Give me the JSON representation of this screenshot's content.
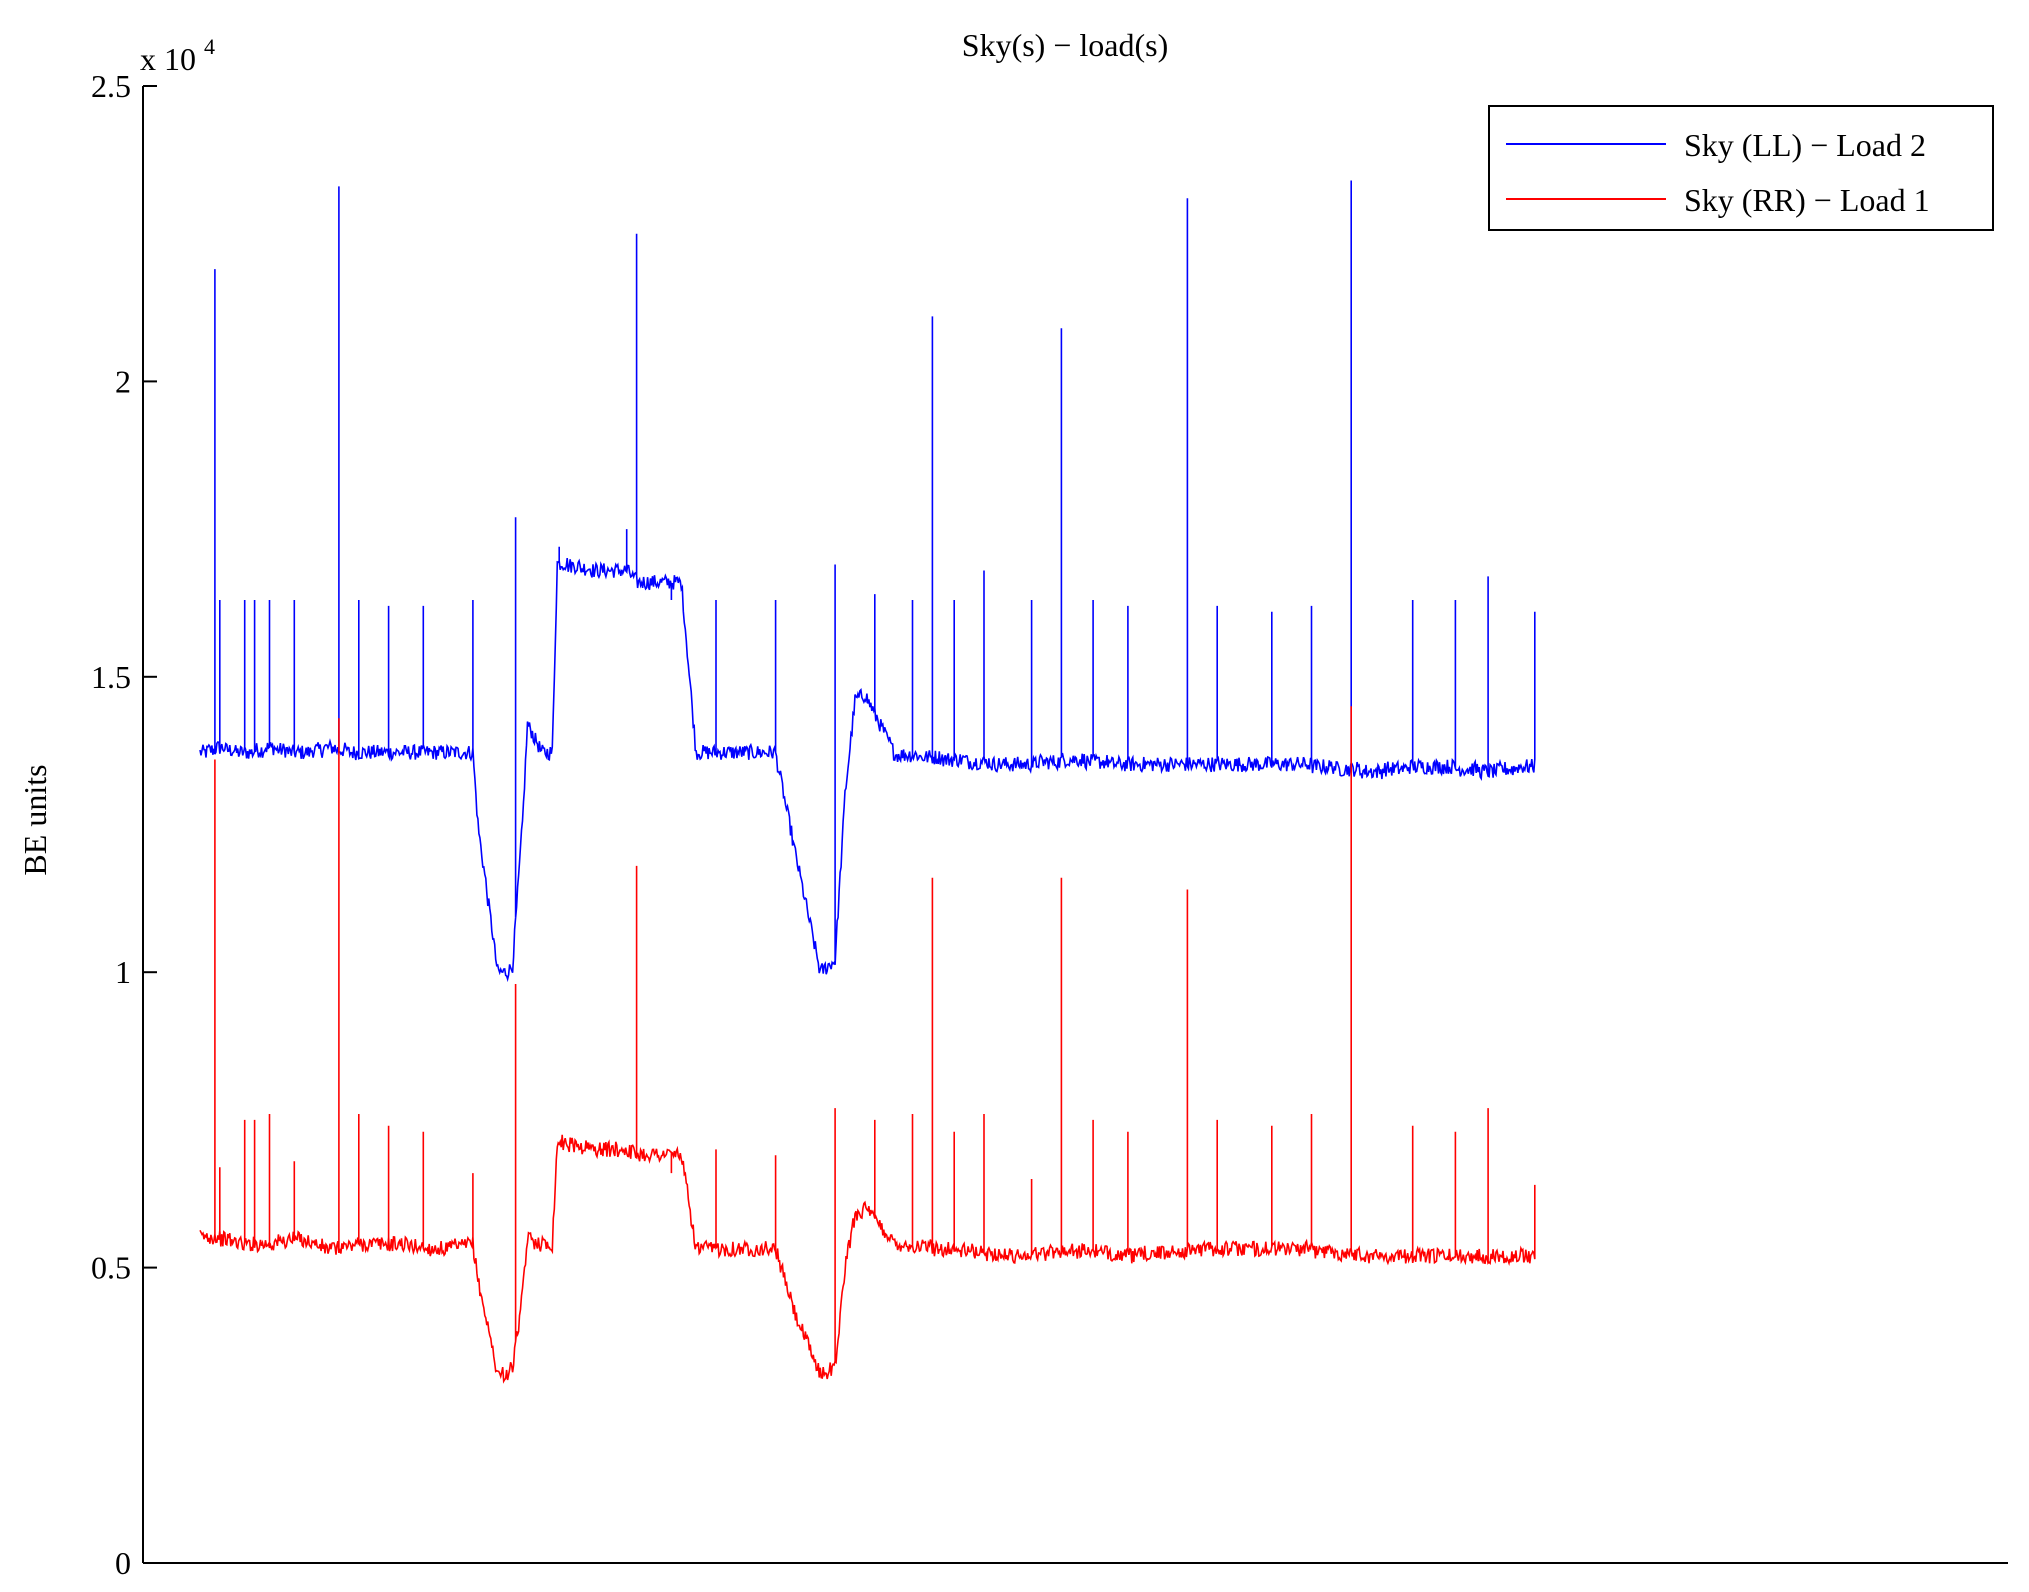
{
  "chart_data": {
    "type": "line",
    "title": "Sky(s) − load(s)",
    "xlabel": "",
    "ylabel": "BE units",
    "yscale_label": "x 10",
    "yscale_exponent": "4",
    "ylim": [
      0,
      25000
    ],
    "yticks": [
      0,
      5000,
      10000,
      15000,
      20000,
      25000
    ],
    "ytick_labels": [
      "0",
      "0.5",
      "1",
      "1.5",
      "2",
      "2.5"
    ],
    "xlim": [
      0,
      1575
    ],
    "grid": false,
    "legend_position": "top-right",
    "series": [
      {
        "name": "Sky (LL) − Load 2",
        "color": "#0000ff",
        "x": [
          0,
          20,
          45,
          70,
          100,
          130,
          160,
          200,
          240,
          275,
          280,
          300,
          310,
          315,
          325,
          330,
          345,
          355,
          360,
          370,
          400,
          430,
          440,
          485,
          500,
          510,
          525,
          540,
          580,
          600,
          625,
          640,
          650,
          660,
          670,
          700,
          760,
          820,
          880,
          940,
          1000,
          1060,
          1120,
          1180,
          1240,
          1300,
          1345
        ],
        "y": [
          13700,
          13800,
          13700,
          13800,
          13700,
          13800,
          13700,
          13700,
          13700,
          13700,
          12500,
          10000,
          10000,
          10100,
          12500,
          14200,
          13700,
          13700,
          16900,
          16900,
          16800,
          16800,
          16600,
          16600,
          13700,
          13700,
          13700,
          13700,
          13700,
          12000,
          10000,
          10200,
          13000,
          14600,
          14700,
          13700,
          13600,
          13500,
          13600,
          13500,
          13500,
          13500,
          13500,
          13400,
          13500,
          13400,
          13500
        ],
        "spikes": [
          {
            "x": 15,
            "y": 21900
          },
          {
            "x": 20,
            "y": 16300
          },
          {
            "x": 45,
            "y": 16300
          },
          {
            "x": 55,
            "y": 16300
          },
          {
            "x": 70,
            "y": 16300
          },
          {
            "x": 95,
            "y": 16300
          },
          {
            "x": 140,
            "y": 23300
          },
          {
            "x": 160,
            "y": 16300
          },
          {
            "x": 190,
            "y": 16200
          },
          {
            "x": 225,
            "y": 16200
          },
          {
            "x": 275,
            "y": 16300
          },
          {
            "x": 318,
            "y": 17700
          },
          {
            "x": 362,
            "y": 17200
          },
          {
            "x": 430,
            "y": 17500
          },
          {
            "x": 440,
            "y": 22500
          },
          {
            "x": 475,
            "y": 16300
          },
          {
            "x": 520,
            "y": 16300
          },
          {
            "x": 580,
            "y": 16300
          },
          {
            "x": 640,
            "y": 16900
          },
          {
            "x": 680,
            "y": 16400
          },
          {
            "x": 718,
            "y": 16300
          },
          {
            "x": 738,
            "y": 21100
          },
          {
            "x": 760,
            "y": 16300
          },
          {
            "x": 790,
            "y": 16800
          },
          {
            "x": 838,
            "y": 16300
          },
          {
            "x": 868,
            "y": 20900
          },
          {
            "x": 900,
            "y": 16300
          },
          {
            "x": 935,
            "y": 16200
          },
          {
            "x": 995,
            "y": 23100
          },
          {
            "x": 1025,
            "y": 16200
          },
          {
            "x": 1080,
            "y": 16100
          },
          {
            "x": 1120,
            "y": 16200
          },
          {
            "x": 1160,
            "y": 23400
          },
          {
            "x": 1222,
            "y": 16300
          },
          {
            "x": 1265,
            "y": 16300
          },
          {
            "x": 1298,
            "y": 16700
          },
          {
            "x": 1345,
            "y": 16100
          }
        ]
      },
      {
        "name": "Sky (RR) − Load 1",
        "color": "#ff0000",
        "x": [
          0,
          20,
          45,
          70,
          100,
          130,
          160,
          200,
          240,
          275,
          280,
          300,
          310,
          315,
          325,
          330,
          345,
          355,
          360,
          370,
          400,
          430,
          440,
          485,
          500,
          510,
          525,
          540,
          580,
          600,
          625,
          640,
          650,
          660,
          670,
          700,
          760,
          820,
          880,
          940,
          1000,
          1060,
          1120,
          1180,
          1240,
          1300,
          1345
        ],
        "y": [
          5500,
          5500,
          5400,
          5400,
          5500,
          5300,
          5400,
          5400,
          5300,
          5400,
          4800,
          3200,
          3200,
          3300,
          4500,
          5500,
          5400,
          5400,
          7100,
          7100,
          7000,
          7000,
          6900,
          6900,
          5300,
          5300,
          5300,
          5300,
          5300,
          4200,
          3200,
          3300,
          5000,
          5900,
          6000,
          5400,
          5300,
          5200,
          5300,
          5200,
          5300,
          5300,
          5300,
          5200,
          5200,
          5200,
          5200
        ],
        "spikes": [
          {
            "x": 15,
            "y": 13600
          },
          {
            "x": 20,
            "y": 6700
          },
          {
            "x": 45,
            "y": 7500
          },
          {
            "x": 55,
            "y": 7500
          },
          {
            "x": 70,
            "y": 7600
          },
          {
            "x": 95,
            "y": 6800
          },
          {
            "x": 140,
            "y": 14300
          },
          {
            "x": 160,
            "y": 7600
          },
          {
            "x": 190,
            "y": 7400
          },
          {
            "x": 225,
            "y": 7300
          },
          {
            "x": 275,
            "y": 6600
          },
          {
            "x": 318,
            "y": 9800
          },
          {
            "x": 440,
            "y": 11800
          },
          {
            "x": 475,
            "y": 6600
          },
          {
            "x": 520,
            "y": 7000
          },
          {
            "x": 580,
            "y": 6900
          },
          {
            "x": 640,
            "y": 7700
          },
          {
            "x": 680,
            "y": 7500
          },
          {
            "x": 718,
            "y": 7600
          },
          {
            "x": 738,
            "y": 11600
          },
          {
            "x": 760,
            "y": 7300
          },
          {
            "x": 790,
            "y": 7600
          },
          {
            "x": 838,
            "y": 6500
          },
          {
            "x": 868,
            "y": 11600
          },
          {
            "x": 900,
            "y": 7500
          },
          {
            "x": 935,
            "y": 7300
          },
          {
            "x": 995,
            "y": 11400
          },
          {
            "x": 1025,
            "y": 7500
          },
          {
            "x": 1080,
            "y": 7400
          },
          {
            "x": 1120,
            "y": 7600
          },
          {
            "x": 1160,
            "y": 14500
          },
          {
            "x": 1222,
            "y": 7400
          },
          {
            "x": 1265,
            "y": 7300
          },
          {
            "x": 1298,
            "y": 7700
          },
          {
            "x": 1345,
            "y": 6400
          }
        ]
      }
    ]
  }
}
